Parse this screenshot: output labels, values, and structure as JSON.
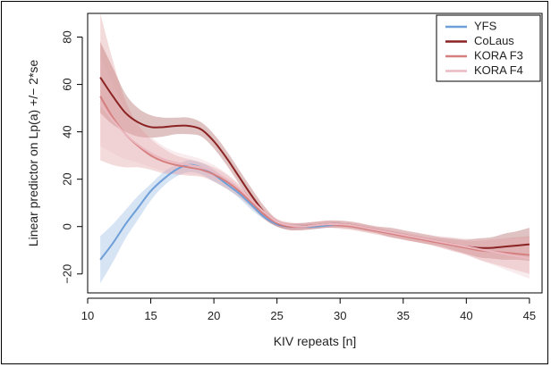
{
  "chart_data": {
    "type": "line",
    "xlabel": "KIV repeats [n]",
    "ylabel": "Linear predictor on Lp(a) +/− 2*se",
    "xlim": [
      10,
      46
    ],
    "ylim": [
      -28,
      90
    ],
    "xticks": [
      10,
      15,
      20,
      25,
      30,
      35,
      40,
      45
    ],
    "yticks": [
      -20,
      0,
      20,
      40,
      60,
      80
    ],
    "ytick_labels": [
      "−20",
      "0",
      "20",
      "40",
      "60",
      "80"
    ],
    "legend_position": "top-right",
    "series": [
      {
        "name": "YFS",
        "color": "#6f9fd8",
        "x": [
          11,
          12,
          13,
          14,
          15,
          16,
          17,
          18,
          19,
          20,
          21,
          22,
          23,
          24,
          25,
          26,
          27,
          28,
          29,
          30
        ],
        "y": [
          -14,
          -7,
          1,
          8,
          15,
          20,
          24,
          26,
          25,
          22,
          18,
          14,
          9,
          4,
          1,
          0,
          0,
          0,
          0.5,
          1
        ],
        "upper": [
          -4,
          1,
          7,
          13,
          18,
          23,
          26,
          28,
          27,
          24,
          20,
          15,
          10,
          5,
          2,
          1,
          1,
          1,
          1.5,
          2
        ],
        "lower": [
          -24,
          -15,
          -5,
          3,
          11,
          17,
          21,
          23,
          22,
          19,
          16,
          12,
          7,
          3,
          0,
          -1,
          -1,
          -1,
          -0.5,
          0
        ]
      },
      {
        "name": "CoLaus",
        "color": "#8b2323",
        "x": [
          11,
          12,
          13,
          14,
          15,
          16,
          17,
          18,
          19,
          20,
          21,
          22,
          23,
          24,
          25,
          26,
          27,
          28,
          29,
          30,
          31,
          32,
          33,
          34,
          35,
          36,
          37,
          38,
          39,
          40,
          41,
          42,
          43,
          44,
          45
        ],
        "y": [
          63,
          55,
          48,
          44,
          42,
          42,
          42.5,
          42.5,
          41,
          36,
          29,
          21,
          13,
          6,
          1.5,
          0,
          0,
          0.5,
          1,
          1,
          0.5,
          -0.5,
          -1.5,
          -2.5,
          -3.5,
          -4.5,
          -5.5,
          -6.5,
          -7.5,
          -8.5,
          -9,
          -9,
          -8.5,
          -8,
          -7.5
        ],
        "upper": [
          78,
          67,
          56,
          50,
          47,
          46,
          46,
          46,
          44,
          39,
          32,
          24,
          16,
          8.5,
          3,
          1.5,
          1.5,
          2,
          2.5,
          2.5,
          2,
          1,
          0,
          -0.5,
          -1.5,
          -2.5,
          -3.5,
          -4.5,
          -5,
          -5.5,
          -5,
          -4.5,
          -3,
          -2,
          -0.5
        ],
        "lower": [
          48,
          43,
          40,
          38,
          37.5,
          38,
          39,
          39,
          38,
          33,
          26,
          18,
          10,
          3.5,
          0,
          -1.5,
          -1.5,
          -1,
          -0.5,
          -0.5,
          -1,
          -2,
          -3,
          -4.5,
          -5.5,
          -6.5,
          -7.5,
          -8.5,
          -10,
          -11.5,
          -13,
          -13.5,
          -14,
          -14,
          -14.5
        ]
      },
      {
        "name": "KORA F3",
        "color": "#d67f7f",
        "x": [
          11,
          12,
          13,
          14,
          15,
          16,
          17,
          18,
          19,
          20,
          21,
          22,
          23,
          24,
          25,
          26,
          27,
          28,
          29,
          30,
          31,
          32,
          33,
          34,
          35,
          36,
          37,
          38,
          39,
          40,
          41,
          42,
          43,
          44,
          45
        ],
        "y": [
          55,
          46,
          39,
          34,
          30,
          27.5,
          26,
          25,
          24,
          22,
          19,
          15,
          10,
          5,
          1.5,
          0,
          0,
          0.5,
          1,
          0.5,
          0,
          -1,
          -2,
          -3,
          -4,
          -5,
          -6,
          -7,
          -8,
          -9,
          -10,
          -10.5,
          -11,
          -11.5,
          -12
        ],
        "upper": [
          90,
          70,
          53,
          43,
          37,
          33,
          30,
          28.5,
          27,
          25,
          22,
          17.5,
          12,
          7,
          3,
          1.5,
          1.5,
          2,
          2.5,
          2,
          1.5,
          0.5,
          -0.5,
          -1.5,
          -2.5,
          -3.5,
          -4.5,
          -5,
          -5.5,
          -6,
          -6,
          -5.5,
          -5,
          -4.5,
          -4
        ],
        "lower": [
          28,
          26,
          25,
          25,
          24,
          22.5,
          22,
          21.5,
          21,
          19,
          16,
          12.5,
          8,
          3,
          0,
          -1.5,
          -1.5,
          -1,
          -0.5,
          -1,
          -1.5,
          -2.5,
          -3.5,
          -4.5,
          -5.5,
          -6.5,
          -7.5,
          -9,
          -10.5,
          -12,
          -14,
          -15.5,
          -17,
          -18.5,
          -20
        ]
      },
      {
        "name": "KORA F4",
        "color": "#ebb9c1",
        "x": [
          11,
          12,
          13,
          14,
          15,
          16,
          17,
          18,
          19,
          20,
          21,
          22,
          23,
          24,
          25,
          26,
          27,
          28,
          29,
          30,
          31,
          32,
          33,
          34,
          35,
          36,
          37,
          38,
          39,
          40,
          41,
          42,
          43,
          44,
          45
        ],
        "y": [
          52,
          45,
          39,
          34.5,
          31,
          28.5,
          27,
          26,
          25,
          23,
          20,
          16,
          11,
          6,
          2,
          0.5,
          0,
          0.5,
          1,
          1,
          0.5,
          -0.5,
          -1.5,
          -2.5,
          -3.5,
          -4.5,
          -5.5,
          -6.5,
          -7.5,
          -8.5,
          -9.5,
          -10.5,
          -11.5,
          -12.5,
          -13.5
        ],
        "upper": [
          72,
          60,
          50,
          43,
          38,
          34,
          31.5,
          30,
          28.5,
          26,
          22.5,
          18,
          13,
          8,
          3.5,
          2,
          1.5,
          2,
          2.5,
          2.5,
          2,
          1,
          0,
          -0.5,
          -1.5,
          -2.5,
          -3.5,
          -4,
          -4.5,
          -5,
          -5,
          -5,
          -5,
          -5,
          -5
        ],
        "lower": [
          34,
          31,
          28.5,
          27,
          25,
          23.5,
          22.5,
          22,
          21.5,
          20,
          17.5,
          14,
          9,
          4,
          0.5,
          -1,
          -1.5,
          -1,
          -0.5,
          -0.5,
          -1,
          -2,
          -3,
          -4.5,
          -5.5,
          -6.5,
          -7.5,
          -9,
          -10.5,
          -12,
          -14,
          -16,
          -18,
          -20,
          -22
        ]
      }
    ]
  }
}
